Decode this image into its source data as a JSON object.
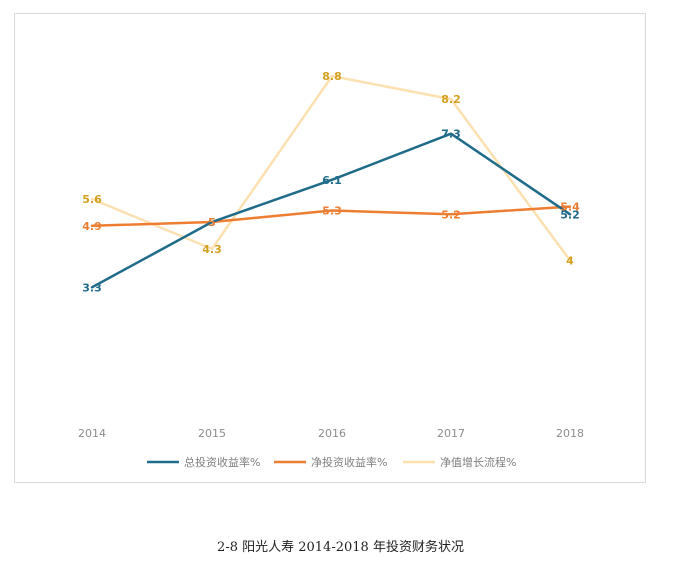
{
  "caption": "2-8 阳光人寿 2014-2018 年投资财务状况",
  "chart_data": {
    "type": "line",
    "categories": [
      "2014",
      "2015",
      "2016",
      "2017",
      "2018"
    ],
    "ylim": [
      0,
      10
    ],
    "grid": false,
    "legend_position": "bottom",
    "series": [
      {
        "name": "总投资收益率%",
        "color": "#1f6b8a",
        "values": [
          3.3,
          5.0,
          6.1,
          7.3,
          5.2
        ]
      },
      {
        "name": "净投资收益率%",
        "color": "#ed7d31",
        "values": [
          4.9,
          5.0,
          5.3,
          5.2,
          5.4
        ]
      },
      {
        "name": "净值增长流程%",
        "color": "#fde0b0",
        "label_color": "#d4a020",
        "values": [
          5.6,
          4.3,
          8.8,
          8.2,
          4.0
        ]
      }
    ],
    "data_labels": [
      [
        "3.3",
        "5",
        "6.1",
        "7.3",
        "5.2"
      ],
      [
        "4.9",
        "5",
        "5.3",
        "5.2",
        "5.4"
      ],
      [
        "5.6",
        "4.3",
        "8.8",
        "8.2",
        "4"
      ]
    ]
  }
}
